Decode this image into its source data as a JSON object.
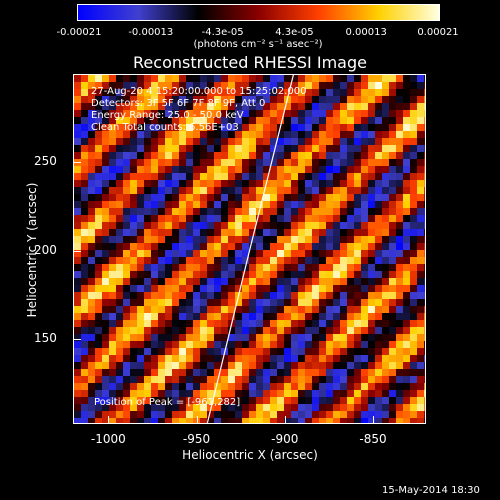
{
  "colorbar": {
    "ticks": [
      "-0.00021",
      "-0.00013",
      "-4.3e-05",
      "4.3e-05",
      "0.00013",
      "0.00021"
    ],
    "unit_label": "(photons cm⁻² s⁻¹ asec⁻²)",
    "colormap": [
      "#0000ff",
      "#4040d0",
      "#000000",
      "#8b0000",
      "#ff4000",
      "#ffd000",
      "#ffffe0"
    ]
  },
  "title": "Reconstructed RHESSI Image",
  "annotations": {
    "time_range": "27-Aug-20 4 15:20:00.000 to 15:25:02.000",
    "detectors": "Detectors: 3F 5F 6F 7F 8F 9F, Att 0",
    "energy_range": "Energy Range: 25.0 - 50.0 keV",
    "clean_counts": "Clean    Total counts: 6.56E+03",
    "peak_position": "Position of Peak = [-961,282]"
  },
  "footer": "15-May-2014 18:30",
  "chart_data": {
    "type": "heatmap",
    "title": "Reconstructed RHESSI Image",
    "xlabel": "Heliocentric X (arcsec)",
    "ylabel": "Heliocentric Y (arcsec)",
    "xticks": [
      "-1000",
      "-950",
      "-900",
      "-850"
    ],
    "yticks": [
      "250",
      "200",
      "150"
    ],
    "xlim": [
      -1020,
      -820
    ],
    "ylim": [
      102,
      300
    ],
    "clim": [
      -0.00021,
      0.00021
    ],
    "pattern": "diagonal stripes running from upper-left to lower-right",
    "limb_line": [
      [
        -944,
        102
      ],
      [
        -920,
        200
      ],
      [
        -895,
        300
      ]
    ]
  }
}
